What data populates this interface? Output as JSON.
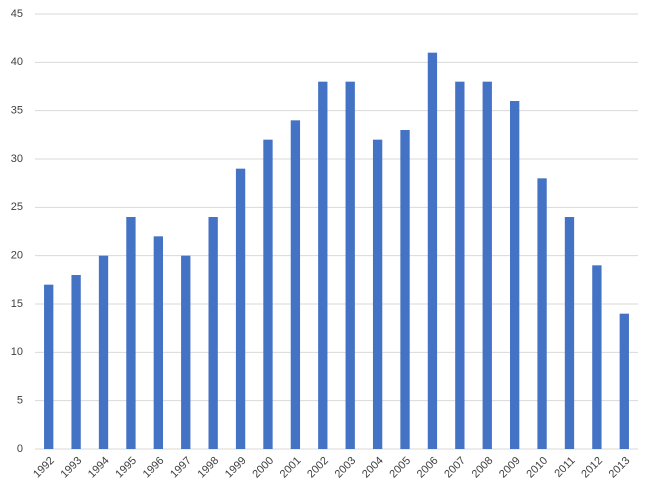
{
  "chart_data": {
    "type": "bar",
    "categories": [
      "1992",
      "1993",
      "1994",
      "1995",
      "1996",
      "1997",
      "1998",
      "1999",
      "2000",
      "2001",
      "2002",
      "2003",
      "2004",
      "2005",
      "2006",
      "2007",
      "2008",
      "2009",
      "2010",
      "2011",
      "2012",
      "2013"
    ],
    "values": [
      17,
      18,
      20,
      24,
      22,
      20,
      24,
      29,
      32,
      34,
      38,
      38,
      32,
      33,
      41,
      38,
      38,
      36,
      28,
      24,
      19,
      14
    ],
    "color": "#4472c4",
    "ylim": [
      0,
      45
    ],
    "yticks": [
      0,
      5,
      10,
      15,
      20,
      25,
      30,
      35,
      40,
      45
    ],
    "grid": true
  }
}
